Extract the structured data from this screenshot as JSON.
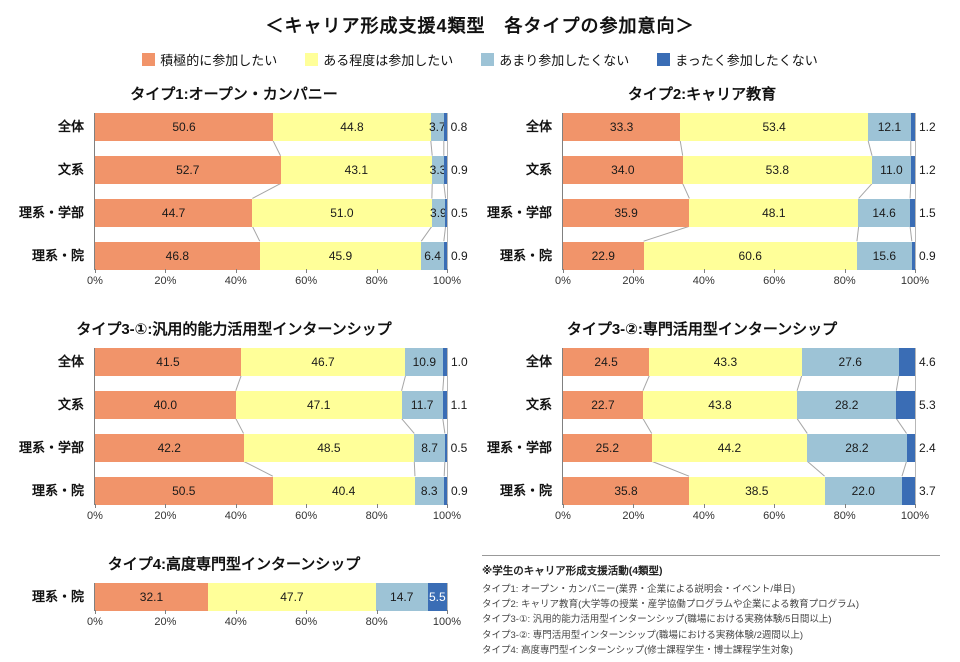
{
  "page_title": "＜キャリア形成支援4類型　各タイプの参加意向＞",
  "legend": [
    {
      "label": "積極的に参加したい",
      "color": "#F1946A"
    },
    {
      "label": "ある程度は参加したい",
      "color": "#FFFF99"
    },
    {
      "label": "あまり参加したくない",
      "color": "#9DC3D6"
    },
    {
      "label": "まったく参加したくない",
      "color": "#3A6DB5"
    }
  ],
  "chart_data": [
    {
      "type": "bar",
      "stacked": true,
      "orientation": "horizontal",
      "title": "タイプ1:オープン・カンパニー",
      "categories": [
        "全体",
        "文系",
        "理系・学部",
        "理系・院"
      ],
      "series": [
        {
          "name": "積極的に参加したい",
          "values": [
            50.6,
            52.7,
            44.7,
            46.8
          ]
        },
        {
          "name": "ある程度は参加したい",
          "values": [
            44.8,
            43.1,
            51.0,
            45.9
          ]
        },
        {
          "name": "あまり参加したくない",
          "values": [
            3.7,
            3.3,
            3.9,
            6.4
          ]
        },
        {
          "name": "まったく参加したくない",
          "values": [
            0.8,
            0.9,
            0.5,
            0.9
          ]
        }
      ],
      "x_ticks": [
        "0%",
        "20%",
        "40%",
        "60%",
        "80%",
        "100%"
      ],
      "xlim": [
        0,
        100
      ]
    },
    {
      "type": "bar",
      "stacked": true,
      "orientation": "horizontal",
      "title": "タイプ2:キャリア教育",
      "categories": [
        "全体",
        "文系",
        "理系・学部",
        "理系・院"
      ],
      "series": [
        {
          "name": "積極的に参加したい",
          "values": [
            33.3,
            34.0,
            35.9,
            22.9
          ]
        },
        {
          "name": "ある程度は参加したい",
          "values": [
            53.4,
            53.8,
            48.1,
            60.6
          ]
        },
        {
          "name": "あまり参加したくない",
          "values": [
            12.1,
            11.0,
            14.6,
            15.6
          ]
        },
        {
          "name": "まったく参加したくない",
          "values": [
            1.2,
            1.2,
            1.5,
            0.9
          ]
        }
      ],
      "x_ticks": [
        "0%",
        "20%",
        "40%",
        "60%",
        "80%",
        "100%"
      ],
      "xlim": [
        0,
        100
      ]
    },
    {
      "type": "bar",
      "stacked": true,
      "orientation": "horizontal",
      "title": "タイプ3-①:汎用的能力活用型インターンシップ",
      "categories": [
        "全体",
        "文系",
        "理系・学部",
        "理系・院"
      ],
      "series": [
        {
          "name": "積極的に参加したい",
          "values": [
            41.5,
            40.0,
            42.2,
            50.5
          ]
        },
        {
          "name": "ある程度は参加したい",
          "values": [
            46.7,
            47.1,
            48.5,
            40.4
          ]
        },
        {
          "name": "あまり参加したくない",
          "values": [
            10.9,
            11.7,
            8.7,
            8.3
          ]
        },
        {
          "name": "まったく参加したくない",
          "values": [
            1.0,
            1.1,
            0.5,
            0.9
          ]
        }
      ],
      "x_ticks": [
        "0%",
        "20%",
        "40%",
        "60%",
        "80%",
        "100%"
      ],
      "xlim": [
        0,
        100
      ]
    },
    {
      "type": "bar",
      "stacked": true,
      "orientation": "horizontal",
      "title": "タイプ3-②:専門活用型インターンシップ",
      "categories": [
        "全体",
        "文系",
        "理系・学部",
        "理系・院"
      ],
      "series": [
        {
          "name": "積極的に参加したい",
          "values": [
            24.5,
            22.7,
            25.2,
            35.8
          ]
        },
        {
          "name": "ある程度は参加したい",
          "values": [
            43.3,
            43.8,
            44.2,
            38.5
          ]
        },
        {
          "name": "あまり参加したくない",
          "values": [
            27.6,
            28.2,
            28.2,
            22.0
          ]
        },
        {
          "name": "まったく参加したくない",
          "values": [
            4.6,
            5.3,
            2.4,
            3.7
          ]
        }
      ],
      "x_ticks": [
        "0%",
        "20%",
        "40%",
        "60%",
        "80%",
        "100%"
      ],
      "xlim": [
        0,
        100
      ]
    },
    {
      "type": "bar",
      "stacked": true,
      "orientation": "horizontal",
      "title": "タイプ4:高度専門型インターンシップ",
      "categories": [
        "理系・院"
      ],
      "series": [
        {
          "name": "積極的に参加したい",
          "values": [
            32.1
          ]
        },
        {
          "name": "ある程度は参加したい",
          "values": [
            47.7
          ]
        },
        {
          "name": "あまり参加したくない",
          "values": [
            14.7
          ]
        },
        {
          "name": "まったく参加したくない",
          "values": [
            5.5
          ]
        }
      ],
      "x_ticks": [
        "0%",
        "20%",
        "40%",
        "60%",
        "80%",
        "100%"
      ],
      "xlim": [
        0,
        100
      ]
    }
  ],
  "notes": {
    "heading": "※学生のキャリア形成支援活動(4類型)",
    "lines": [
      "タイプ1: オープン・カンパニー(業界・企業による説明会・イベント/単日)",
      "タイプ2: キャリア教育(大学等の授業・産学協働プログラムや企業による教育プログラム)",
      "タイプ3-①: 汎用的能力活用型インターンシップ(職場における実務体験/5日間以上)",
      "タイプ3-②: 専門活用型インターンシップ(職場における実務体験/2週間以上)",
      "タイプ4: 高度専門型インターンシップ(修士課程学生・博士課程学生対象)"
    ]
  }
}
